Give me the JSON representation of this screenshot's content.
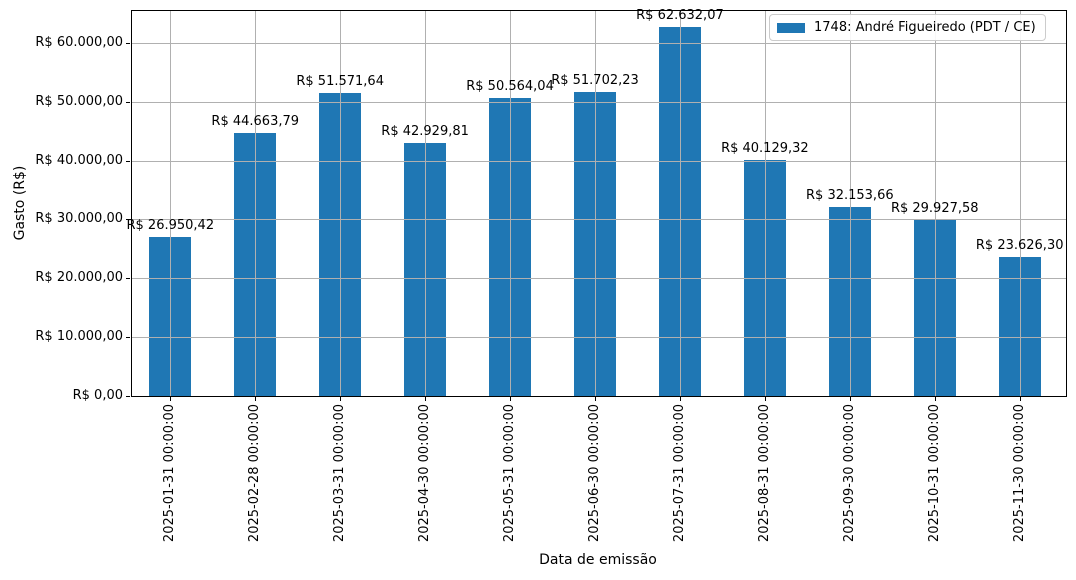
{
  "chart_data": {
    "type": "bar",
    "title": "",
    "xlabel": "Data de emissão",
    "ylabel": "Gasto (R$)",
    "categories": [
      "2025-01-31 00:00:00",
      "2025-02-28 00:00:00",
      "2025-03-31 00:00:00",
      "2025-04-30 00:00:00",
      "2025-05-31 00:00:00",
      "2025-06-30 00:00:00",
      "2025-07-31 00:00:00",
      "2025-08-31 00:00:00",
      "2025-09-30 00:00:00",
      "2025-10-31 00:00:00",
      "2025-11-30 00:00:00"
    ],
    "values": [
      26950.42,
      44663.79,
      51571.64,
      42929.81,
      50564.04,
      51702.23,
      62632.07,
      40129.32,
      32153.66,
      29927.58,
      23626.3
    ],
    "bar_labels": [
      "R$ 26.950,42",
      "R$ 44.663,79",
      "R$ 51.571,64",
      "R$ 42.929,81",
      "R$ 50.564,04",
      "R$ 51.702,23",
      "R$ 62.632,07",
      "R$ 40.129,32",
      "R$ 32.153,66",
      "R$ 29.927,58",
      "R$ 23.626,30"
    ],
    "yticks": [
      {
        "value": 0,
        "label": "R$ 0,00"
      },
      {
        "value": 10000,
        "label": "R$ 10.000,00"
      },
      {
        "value": 20000,
        "label": "R$ 20.000,00"
      },
      {
        "value": 30000,
        "label": "R$ 30.000,00"
      },
      {
        "value": 40000,
        "label": "R$ 40.000,00"
      },
      {
        "value": 50000,
        "label": "R$ 50.000,00"
      },
      {
        "value": 60000,
        "label": "R$ 60.000,00"
      }
    ],
    "ylim": [
      0,
      65600
    ],
    "grid": true,
    "legend": {
      "position": "upper right",
      "entries": [
        {
          "label": "1748: André Figueiredo (PDT / CE)",
          "color": "#1f77b4"
        }
      ]
    },
    "colors": {
      "bar": "#1f77b4",
      "grid": "#b0b0b0",
      "spine": "#000000",
      "text": "#000000",
      "legend_border": "#cccccc",
      "legend_background": "#ffffff"
    }
  }
}
